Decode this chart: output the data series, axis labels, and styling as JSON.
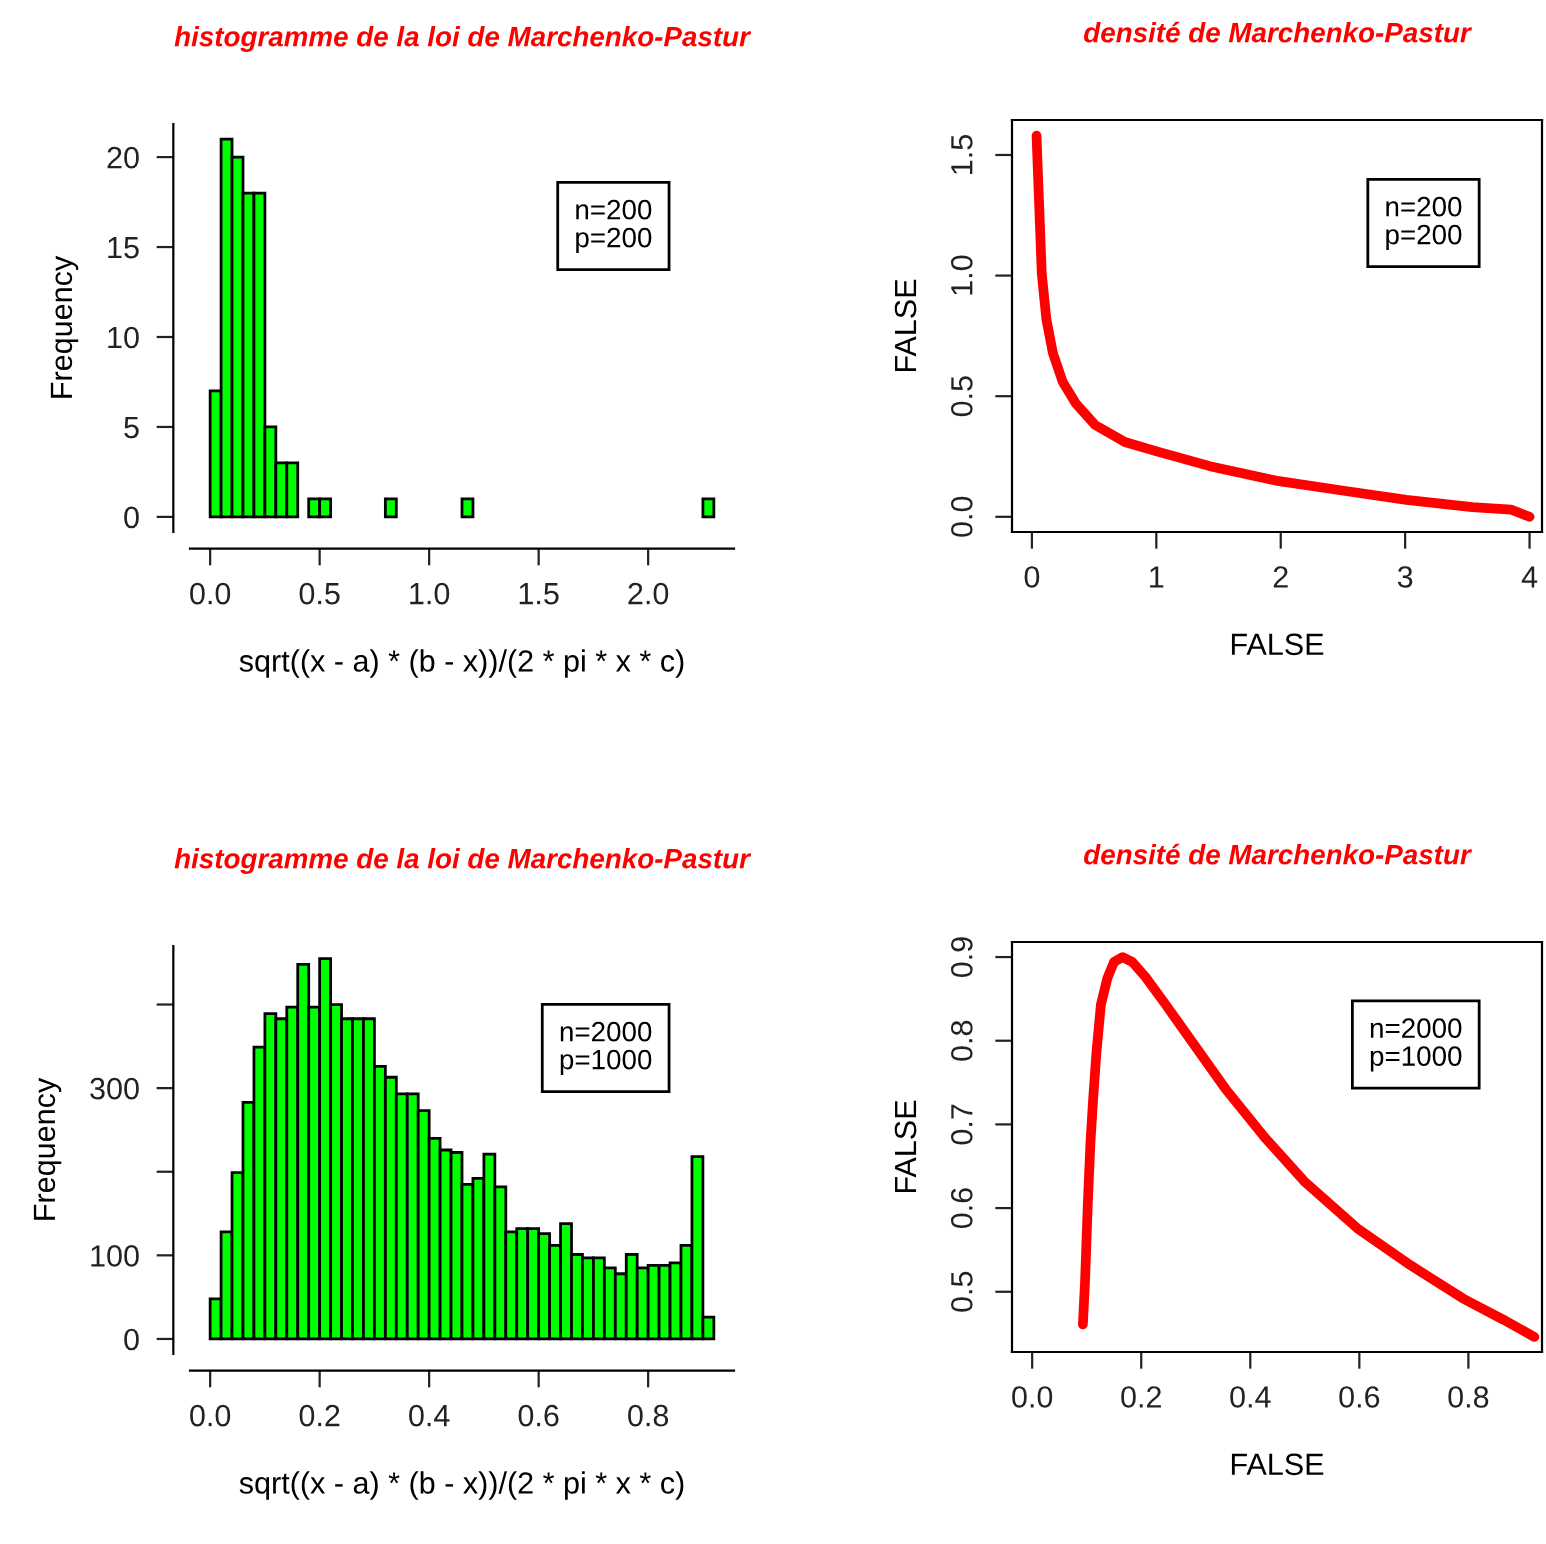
{
  "chart_data": [
    {
      "type": "histogram",
      "title": "histogramme de la loi de Marchenko-Pastur",
      "xlabel": "sqrt((x - a) * (b - x))/(2 * pi * x * c)",
      "ylabel": "Frequency",
      "color": "#00ff00",
      "annotations": [
        "n=200",
        "p=200"
      ],
      "bins": [
        0,
        0.05,
        0.1,
        0.15,
        0.2,
        0.25,
        0.3,
        0.35,
        0.4,
        0.45,
        0.5,
        0.55,
        0.6,
        0.65,
        0.7,
        0.75,
        0.8,
        0.85,
        0.9,
        0.95,
        1.0,
        1.05,
        1.1,
        1.15,
        1.2,
        1.25,
        1.3,
        1.35,
        1.4,
        1.45,
        1.5,
        1.55,
        1.6,
        1.65,
        1.7,
        1.75,
        1.8,
        1.85,
        1.9,
        1.95,
        2.0,
        2.05,
        2.1,
        2.15,
        2.2,
        2.25,
        2.3
      ],
      "values": [
        7,
        21,
        20,
        18,
        18,
        5,
        3,
        3,
        0,
        1,
        1,
        0,
        0,
        0,
        0,
        0,
        1,
        0,
        0,
        0,
        0,
        0,
        0,
        1,
        0,
        0,
        0,
        0,
        0,
        0,
        0,
        0,
        0,
        0,
        0,
        0,
        0,
        0,
        0,
        0,
        0,
        0,
        0,
        0,
        0,
        1
      ],
      "xlim": [
        -0.092,
        2.392
      ],
      "ylim": [
        -0.84,
        21.84
      ],
      "xticks": [
        {
          "value": 0,
          "label": "0.0"
        },
        {
          "value": 0.5,
          "label": "0.5"
        },
        {
          "value": 1,
          "label": "1.0"
        },
        {
          "value": 1.5,
          "label": "1.5"
        },
        {
          "value": 2,
          "label": "2.0"
        }
      ],
      "yticks": [
        0,
        5,
        10,
        15,
        20
      ]
    },
    {
      "type": "line",
      "title": "densité de Marchenko-Pastur",
      "xlabel": "FALSE",
      "ylabel": "FALSE",
      "color": "#ff0000",
      "annotations": [
        "n=200",
        "p=200"
      ],
      "x": [
        0.037,
        0.063,
        0.079,
        0.116,
        0.168,
        0.247,
        0.353,
        0.51,
        0.747,
        1.01,
        1.43,
        1.96,
        2.48,
        3.01,
        3.54,
        3.85,
        4.0
      ],
      "values": [
        1.58,
        1.23,
        1.01,
        0.82,
        0.68,
        0.56,
        0.47,
        0.38,
        0.31,
        0.27,
        0.21,
        0.15,
        0.11,
        0.07,
        0.04,
        0.03,
        0.0
      ],
      "xlim": [
        -0.16,
        4.1
      ],
      "ylim": [
        -0.063,
        1.645
      ],
      "xticks": [
        0,
        1,
        2,
        3,
        4
      ],
      "yticks": [
        {
          "value": 0,
          "label": "0.0"
        },
        {
          "value": 0.5,
          "label": "0.5"
        },
        {
          "value": 1,
          "label": "1.0"
        },
        {
          "value": 1.5,
          "label": "1.5"
        }
      ]
    },
    {
      "type": "histogram",
      "title": "histogramme de la loi de Marchenko-Pastur",
      "xlabel": "sqrt((x - a) * (b - x))/(2 * pi * x * c)",
      "ylabel": "Frequency",
      "color": "#00ff00",
      "annotations": [
        "n=2000",
        "p=1000"
      ],
      "bins": [
        0,
        0.02,
        0.04,
        0.06,
        0.08,
        0.1,
        0.12,
        0.14,
        0.16,
        0.18,
        0.2,
        0.22,
        0.24,
        0.26,
        0.28,
        0.3,
        0.32,
        0.34,
        0.36,
        0.38,
        0.4,
        0.42,
        0.44,
        0.46,
        0.48,
        0.5,
        0.52,
        0.54,
        0.56,
        0.58,
        0.6,
        0.62,
        0.64,
        0.66,
        0.68,
        0.7,
        0.72,
        0.74,
        0.76,
        0.78,
        0.8,
        0.82,
        0.84,
        0.86,
        0.88,
        0.9,
        0.92
      ],
      "values": [
        48,
        128,
        199,
        283,
        349,
        389,
        383,
        397,
        448,
        397,
        455,
        400,
        383,
        383,
        383,
        326,
        313,
        293,
        293,
        273,
        240,
        226,
        223,
        185,
        192,
        221,
        182,
        128,
        132,
        132,
        126,
        112,
        138,
        101,
        97,
        97,
        85,
        78,
        101,
        85,
        88,
        88,
        91,
        112,
        218,
        26
      ],
      "xlim": [
        -0.0368,
        0.9568
      ],
      "ylim": [
        -18,
        470
      ],
      "xticks": [
        {
          "value": 0,
          "label": "0.0"
        },
        0.2,
        0.4,
        0.6,
        0.8
      ],
      "yticks": [
        0,
        100,
        {
          "value": 200,
          "label": null
        },
        300,
        {
          "value": 400,
          "label": null
        }
      ]
    },
    {
      "type": "line",
      "title": "densité de Marchenko-Pastur",
      "xlabel": "FALSE",
      "ylabel": "FALSE",
      "color": "#ff0000",
      "annotations": [
        "n=2000",
        "p=1000"
      ],
      "x": [
        0.093,
        0.097,
        0.102,
        0.107,
        0.112,
        0.118,
        0.126,
        0.138,
        0.15,
        0.166,
        0.184,
        0.208,
        0.245,
        0.293,
        0.354,
        0.427,
        0.499,
        0.596,
        0.693,
        0.79,
        0.863,
        0.921
      ],
      "values": [
        0.461,
        0.513,
        0.605,
        0.68,
        0.732,
        0.787,
        0.843,
        0.875,
        0.894,
        0.9,
        0.894,
        0.876,
        0.843,
        0.799,
        0.743,
        0.684,
        0.632,
        0.576,
        0.532,
        0.492,
        0.467,
        0.446
      ],
      "xlim": [
        -0.037,
        0.935
      ],
      "ylim": [
        0.428,
        0.918
      ],
      "xticks": [
        {
          "value": 0,
          "label": "0.0"
        },
        0.2,
        0.4,
        0.6,
        0.8
      ],
      "yticks": [
        0.5,
        0.6,
        0.7,
        0.8,
        0.9
      ]
    }
  ]
}
